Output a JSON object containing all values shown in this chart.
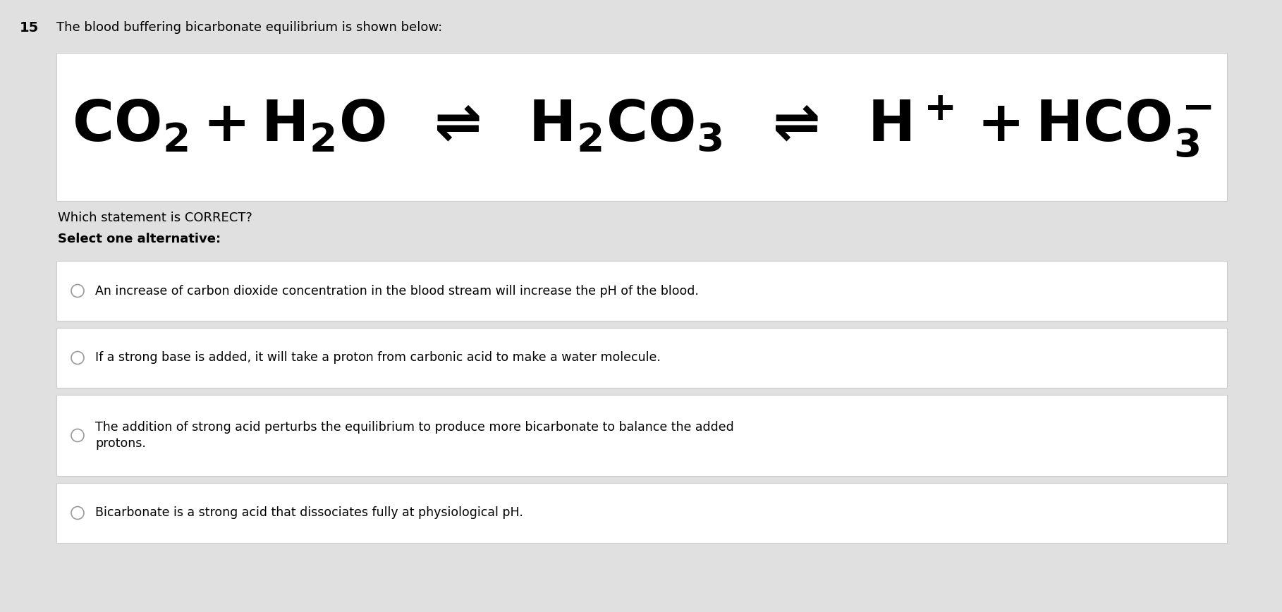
{
  "bg_color": "#e0e0e0",
  "white": "#ffffff",
  "black": "#000000",
  "light_gray": "#cccccc",
  "question_number": "15",
  "question_text": "The blood buffering bicarbonate equilibrium is shown below:",
  "sub_question": "Which statement is CORRECT?",
  "select_label": "Select one alternative:",
  "options": [
    "An increase of carbon dioxide concentration in the blood stream will increase the pH of the blood.",
    "If a strong base is added, it will take a proton from carbonic acid to make a water molecule.",
    "The addition of strong acid perturbs the equilibrium to produce more bicarbonate to balance the added\nprotons.",
    "Bicarbonate is a strong acid that dissociates fully at physiological pH."
  ],
  "fig_width": 18.18,
  "fig_height": 8.68,
  "dpi": 100
}
